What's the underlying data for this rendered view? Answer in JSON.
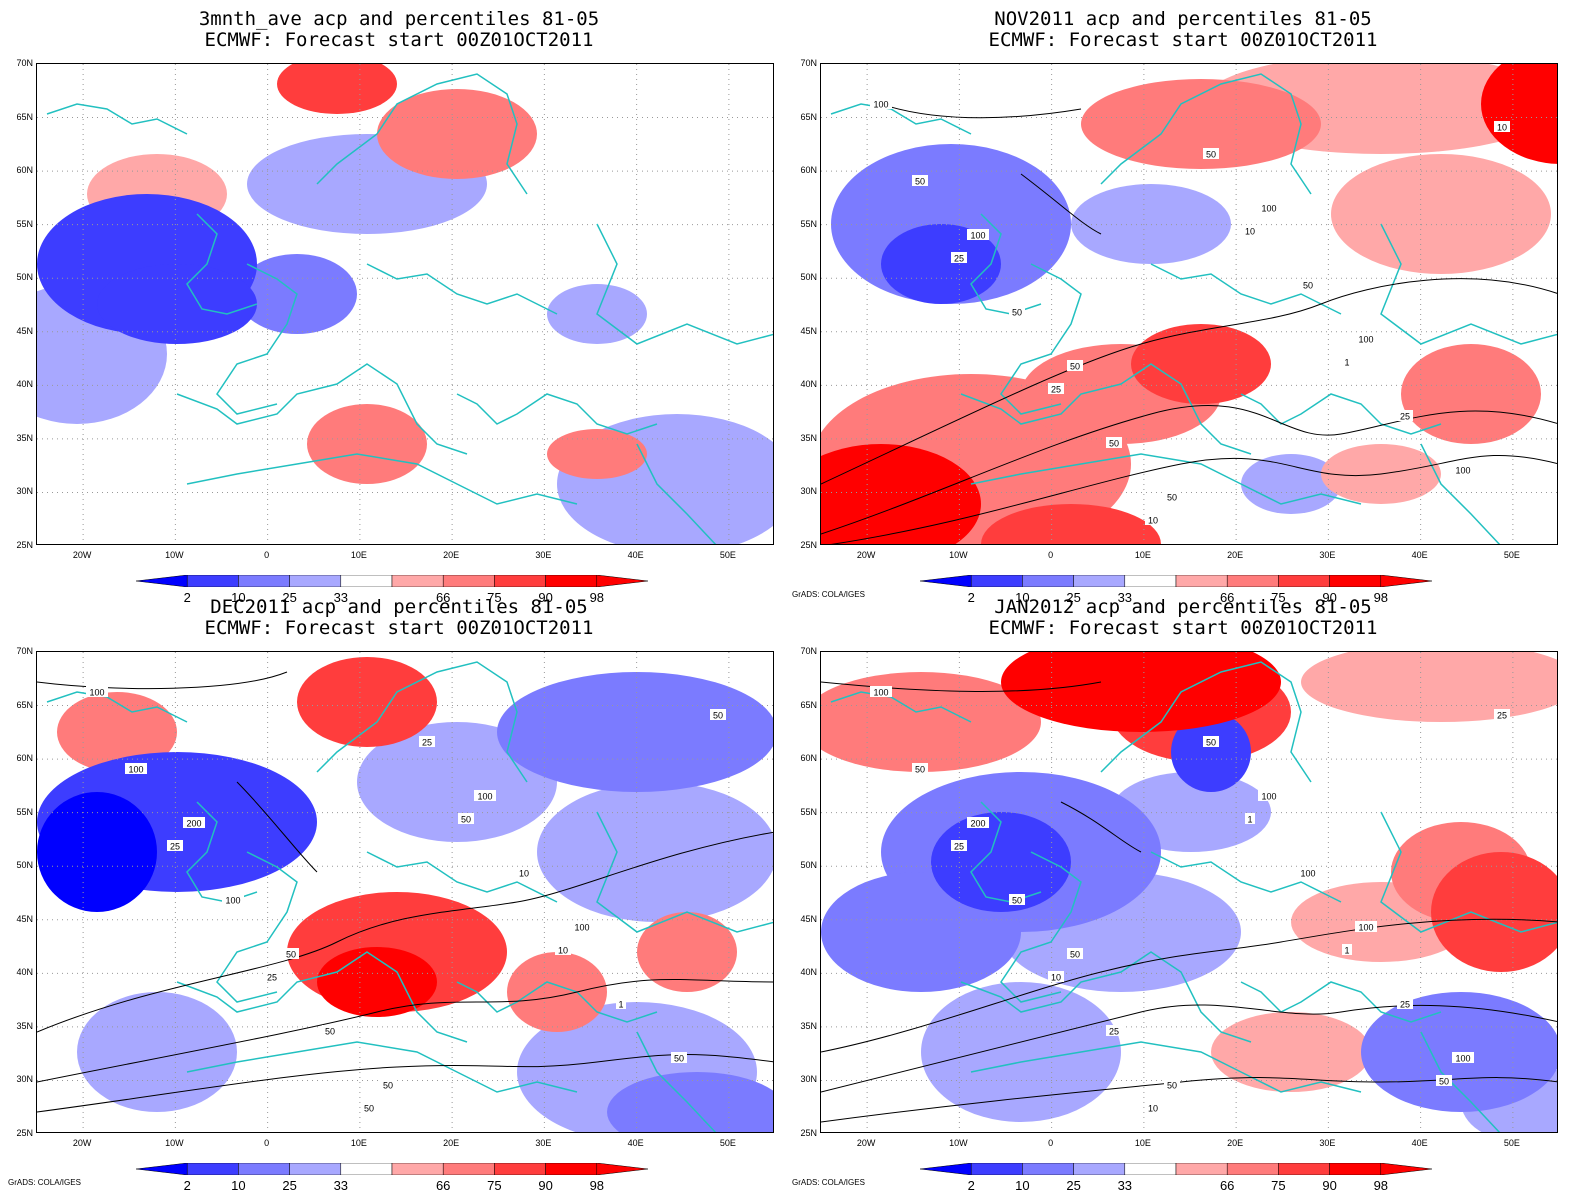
{
  "panels": [
    {
      "title": "3mnth_ave acp and percentiles 81-05",
      "subtitle": "ECMWF: Forecast start 00Z01OCT2011",
      "credit": ""
    },
    {
      "title": "NOV2011 acp and percentiles 81-05",
      "subtitle": "ECMWF: Forecast start 00Z01OCT2011",
      "credit": "GrADS: COLA/IGES"
    },
    {
      "title": "DEC2011 acp and percentiles 81-05",
      "subtitle": "ECMWF: Forecast start 00Z01OCT2011",
      "credit": "GrADS: COLA/IGES"
    },
    {
      "title": "JAN2012 acp and percentiles 81-05",
      "subtitle": "ECMWF: Forecast start 00Z01OCT2011",
      "credit": "GrADS: COLA/IGES"
    }
  ],
  "map": {
    "lon_range": [
      -25,
      55
    ],
    "lat_range": [
      25,
      70
    ],
    "lat_labels": [
      "70N",
      "65N",
      "60N",
      "55N",
      "50N",
      "45N",
      "40N",
      "35N",
      "30N",
      "25N"
    ],
    "lon_labels": [
      "20W",
      "10W",
      "0",
      "10E",
      "20E",
      "30E",
      "40E",
      "50E"
    ],
    "grid": "dotted",
    "coastline_color": "#22c0c0"
  },
  "colorbar": {
    "labels": [
      "2",
      "10",
      "25",
      "33",
      "66",
      "75",
      "90",
      "98"
    ],
    "colors": [
      "#0000ff",
      "#3d3dff",
      "#7b7bff",
      "#a8a8ff",
      "#ffffff",
      "#ffa8a8",
      "#ff7b7b",
      "#ff3d3d",
      "#ff0000"
    ]
  },
  "contour_labels": [
    [],
    [
      "100",
      "100",
      "50",
      "50",
      "100",
      "100",
      "100",
      "50",
      "50",
      "50",
      "50",
      "50",
      "25",
      "10",
      "25",
      "25",
      "10",
      "10",
      "1"
    ],
    [
      "100",
      "200",
      "50",
      "50",
      "100",
      "100",
      "50",
      "100",
      "100",
      "50",
      "25",
      "10",
      "1",
      "50",
      "25",
      "25",
      "50",
      "50",
      "10"
    ],
    [
      "100",
      "200",
      "50",
      "50",
      "100",
      "100",
      "100",
      "50",
      "50",
      "25",
      "50",
      "100",
      "25",
      "25",
      "25",
      "10",
      "10",
      "1",
      "1",
      "50"
    ]
  ]
}
